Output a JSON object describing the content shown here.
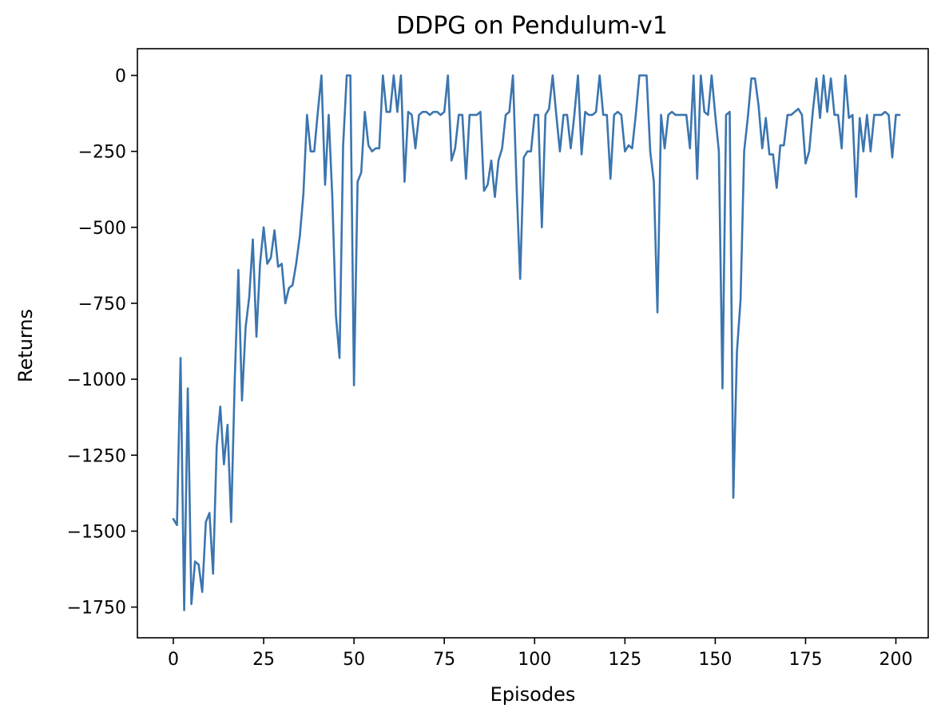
{
  "chart_data": {
    "type": "line",
    "title": "DDPG on Pendulum-v1",
    "xlabel": "Episodes",
    "ylabel": "Returns",
    "xlim": [
      -9.95,
      208.95
    ],
    "ylim": [
      -1851,
      88
    ],
    "xticks": [
      0,
      25,
      50,
      75,
      100,
      125,
      150,
      175,
      200
    ],
    "yticks": [
      0,
      -250,
      -500,
      -750,
      -1000,
      -1250,
      -1500,
      -1750
    ],
    "xtick_labels": [
      "0",
      "25",
      "50",
      "75",
      "100",
      "125",
      "150",
      "175",
      "200"
    ],
    "ytick_labels": [
      "0",
      "−250",
      "−500",
      "−750",
      "−1000",
      "−1250",
      "−1500",
      "−1750"
    ],
    "grid": false,
    "line_color": "#3b75af",
    "series": [
      {
        "values": [
          -1460,
          -1480,
          -930,
          -1760,
          -1030,
          -1740,
          -1600,
          -1610,
          -1700,
          -1470,
          -1440,
          -1640,
          -1220,
          -1090,
          -1280,
          -1150,
          -1470,
          -1000,
          -640,
          -1070,
          -830,
          -730,
          -540,
          -860,
          -620,
          -500,
          -620,
          -600,
          -510,
          -630,
          -620,
          -750,
          -700,
          -690,
          -620,
          -530,
          -390,
          -130,
          -250,
          -250,
          -120,
          0,
          -360,
          -130,
          -400,
          -790,
          -930,
          -230,
          0,
          0,
          -1020,
          -350,
          -320,
          -120,
          -230,
          -250,
          -240,
          -240,
          0,
          -120,
          -120,
          0,
          -120,
          0,
          -350,
          -120,
          -130,
          -240,
          -130,
          -120,
          -120,
          -130,
          -120,
          -120,
          -130,
          -120,
          0,
          -280,
          -240,
          -130,
          -130,
          -340,
          -130,
          -130,
          -130,
          -120,
          -380,
          -360,
          -280,
          -400,
          -280,
          -240,
          -130,
          -120,
          0,
          -360,
          -670,
          -270,
          -250,
          -250,
          -130,
          -130,
          -500,
          -130,
          -110,
          0,
          -130,
          -250,
          -130,
          -130,
          -240,
          -130,
          0,
          -260,
          -120,
          -130,
          -130,
          -120,
          0,
          -130,
          -130,
          -340,
          -130,
          -120,
          -130,
          -250,
          -230,
          -240,
          -130,
          0,
          0,
          0,
          -250,
          -350,
          -780,
          -130,
          -240,
          -130,
          -120,
          -130,
          -130,
          -130,
          -130,
          -240,
          0,
          -340,
          0,
          -120,
          -130,
          0,
          -130,
          -250,
          -1030,
          -130,
          -120,
          -1390,
          -910,
          -740,
          -250,
          -140,
          -10,
          -10,
          -100,
          -240,
          -140,
          -260,
          -260,
          -370,
          -230,
          -230,
          -130,
          -130,
          -120,
          -110,
          -130,
          -290,
          -250,
          -120,
          -10,
          -140,
          0,
          -120,
          -10,
          -130,
          -130,
          -240,
          0,
          -140,
          -130,
          -400,
          -140,
          -250,
          -130,
          -250,
          -130,
          -130,
          -130,
          -120,
          -130,
          -270,
          -130,
          -130
        ],
        "color": "#3b75af"
      }
    ]
  }
}
